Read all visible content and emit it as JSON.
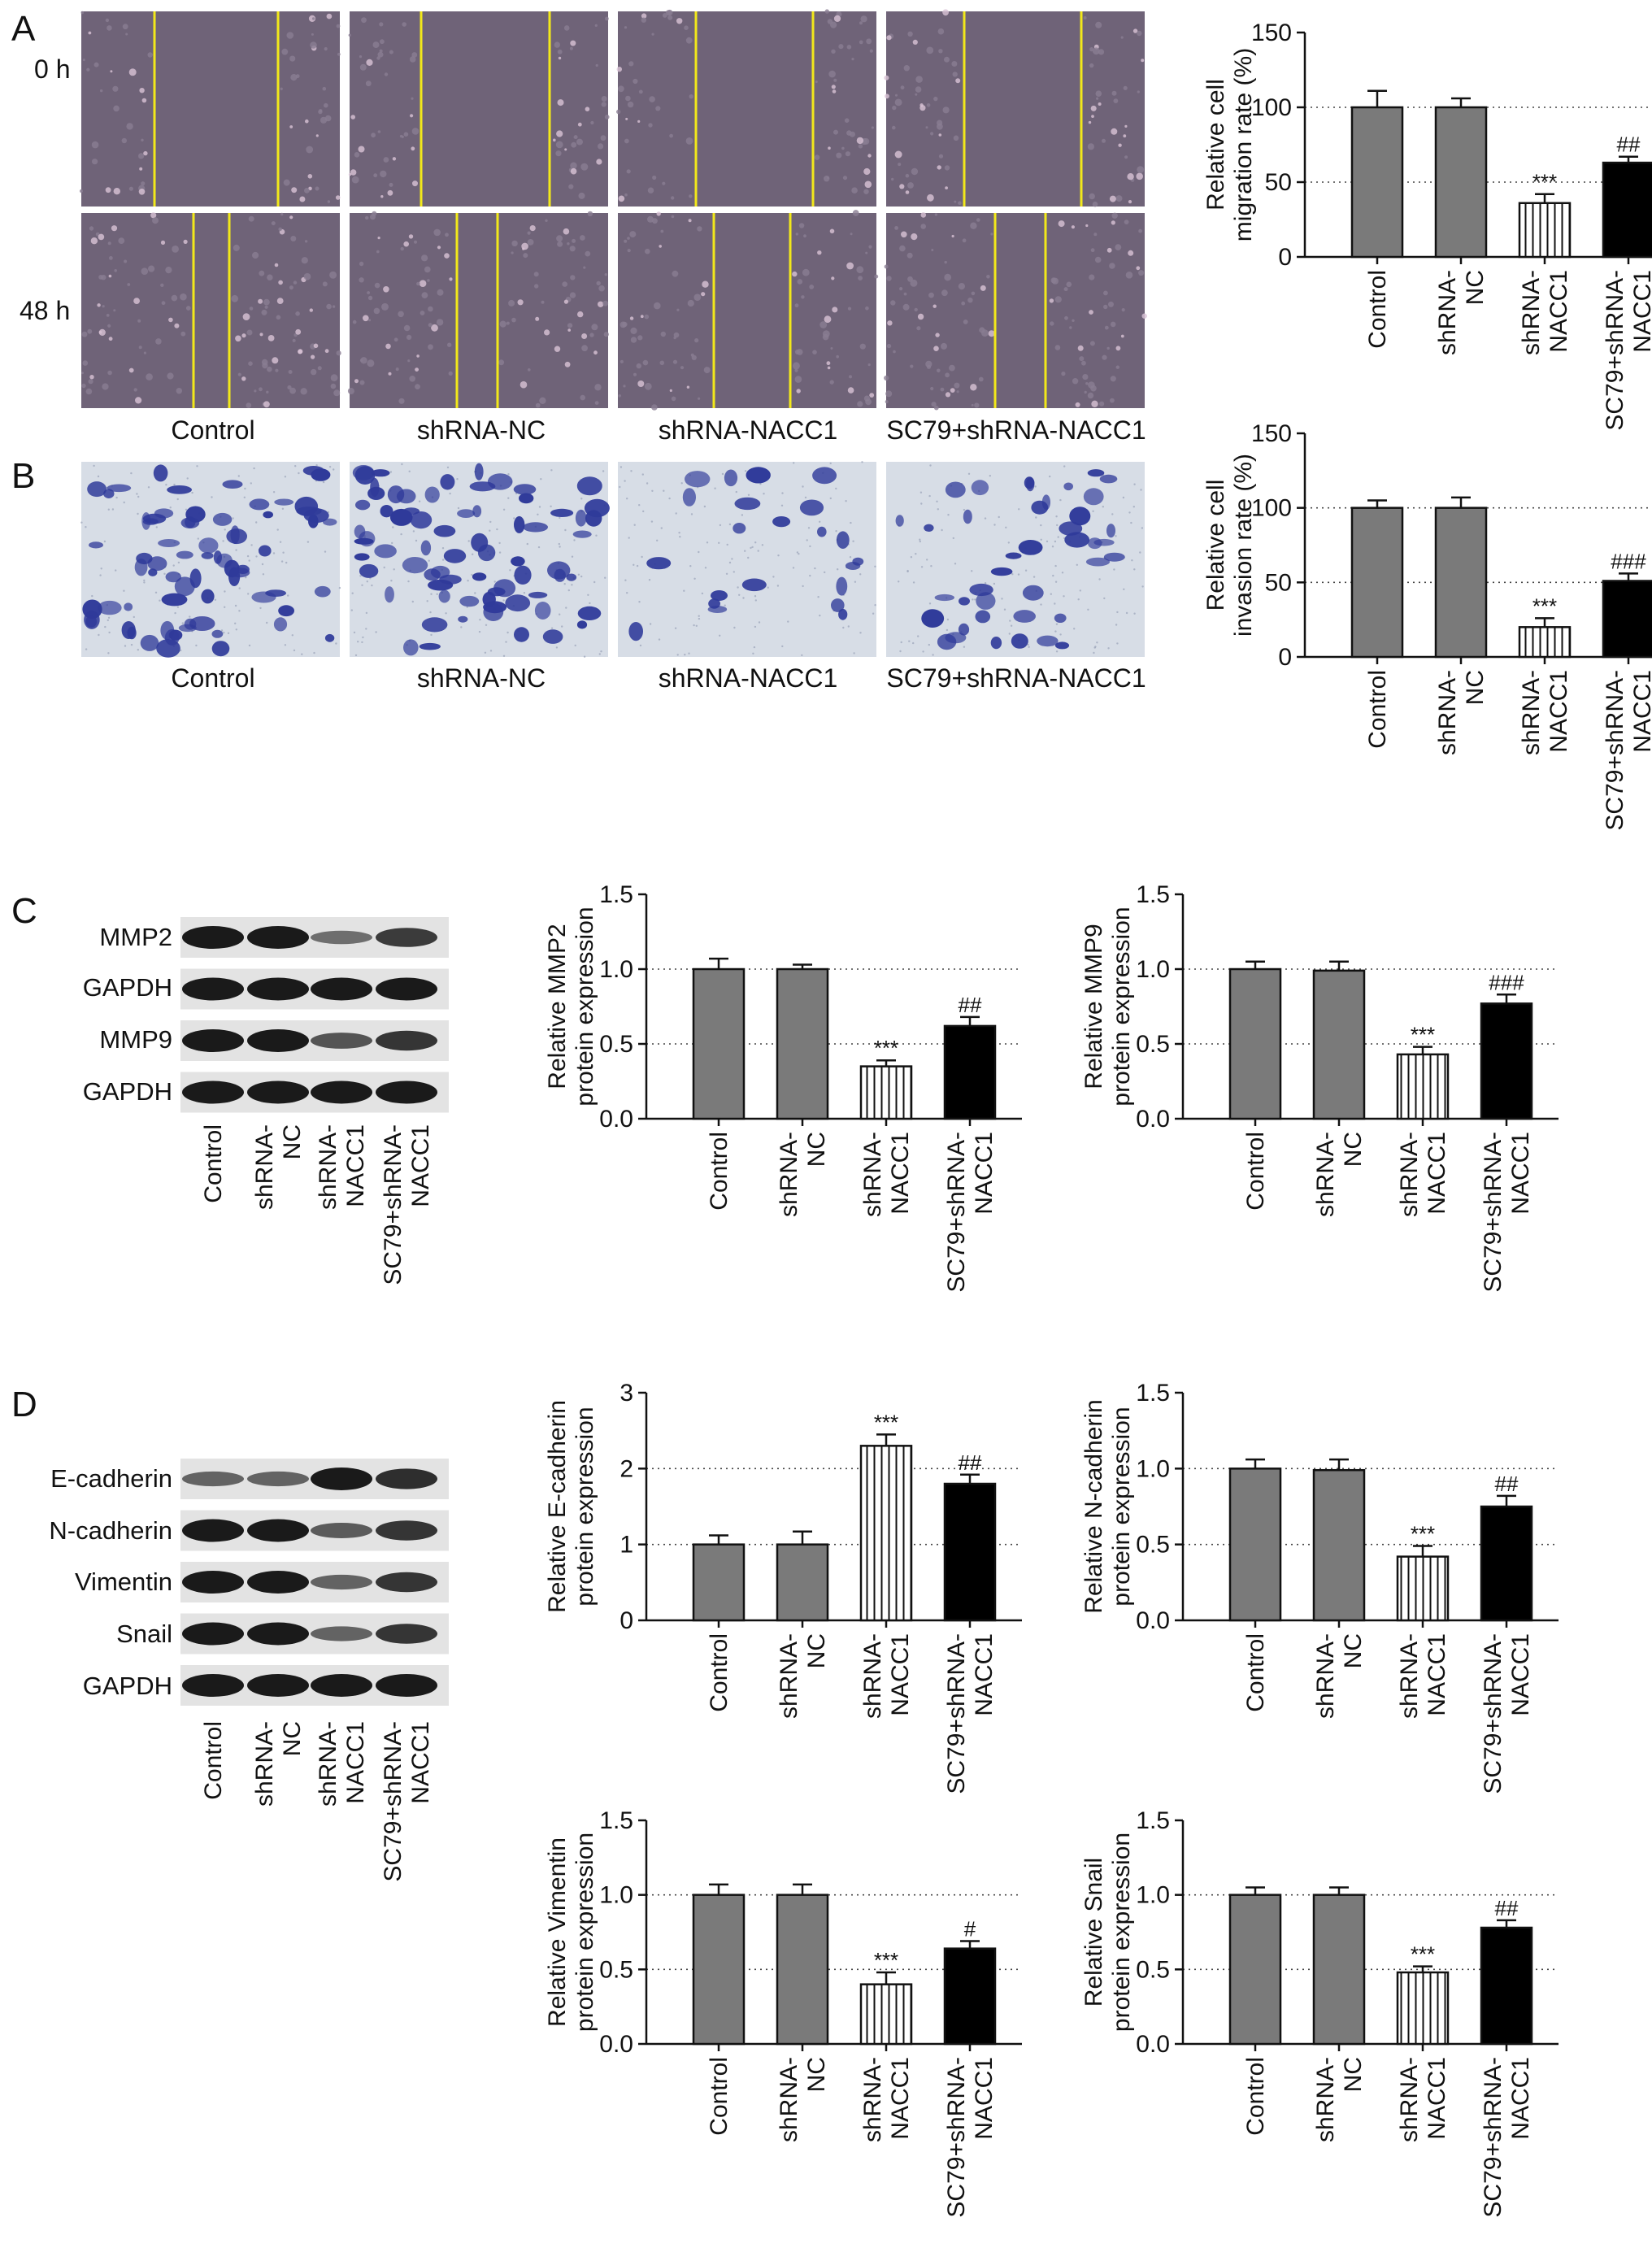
{
  "colors": {
    "control_bar": "#7a7a7a",
    "nc_bar": "#7a7a7a",
    "knockdown_bar": "#ffffff",
    "rescue_bar": "#000000",
    "scratch_photo": "#6f6378",
    "scratch_line": "#f2e81a",
    "transwell_bg": "#d7dde6",
    "transwell_cell": "#2f3a9a",
    "blot_bg": "#e3e3e3",
    "blot_band": "#1a1a1a"
  },
  "panels": {
    "a": {
      "letter": "A",
      "times": [
        "0 h",
        "48 h"
      ],
      "conditions": [
        "Control",
        "shRNA-NC",
        "shRNA-NACC1",
        "SC79+shRNA-NACC1"
      ]
    },
    "b": {
      "letter": "B",
      "conditions": [
        "Control",
        "shRNA-NC",
        "shRNA-NACC1",
        "SC79+shRNA-NACC1"
      ]
    },
    "c": {
      "letter": "C",
      "blot_rows": [
        "MMP2",
        "GAPDH",
        "MMP9",
        "GAPDH"
      ]
    },
    "d": {
      "letter": "D",
      "blot_rows": [
        "E-cadherin",
        "N-cadherin",
        "Vimentin",
        "Snail",
        "GAPDH"
      ]
    },
    "blot_lanes": [
      [
        "Control"
      ],
      [
        "shRNA-",
        "NC"
      ],
      [
        "shRNA-",
        "NACC1"
      ],
      [
        "SC79+shRNA-",
        "NACC1"
      ]
    ],
    "blot_band_strength": {
      "MMP2": [
        1.0,
        1.0,
        0.35,
        0.75
      ],
      "MMP9": [
        1.0,
        1.0,
        0.55,
        0.8
      ],
      "GAPDH": [
        1.0,
        1.0,
        1.0,
        1.0
      ],
      "E-cadherin": [
        0.45,
        0.45,
        1.0,
        0.85
      ],
      "N-cadherin": [
        1.0,
        1.0,
        0.5,
        0.8
      ],
      "Vimentin": [
        1.0,
        1.0,
        0.45,
        0.8
      ],
      "Snail": [
        1.0,
        1.0,
        0.45,
        0.8
      ]
    }
  },
  "chart_data": [
    {
      "type": "bar",
      "id": "migration",
      "categories": [
        [
          "Control"
        ],
        [
          "shRNA-",
          "NC"
        ],
        [
          "shRNA-",
          "NACC1"
        ],
        [
          "SC79+shRNA-",
          "NACC1"
        ]
      ],
      "values": [
        100,
        100,
        36,
        63
      ],
      "errors": [
        11,
        6,
        6,
        4
      ],
      "ylabel_lines": [
        "Relative cell",
        "migration rate (%)"
      ],
      "ylim": [
        0,
        150
      ],
      "yticks": [
        "0",
        "50",
        "100",
        "150"
      ],
      "ref_lines": [
        50,
        100
      ],
      "annotations": [
        "",
        "",
        "***",
        "##"
      ]
    },
    {
      "type": "bar",
      "id": "invasion",
      "categories": [
        [
          "Control"
        ],
        [
          "shRNA-",
          "NC"
        ],
        [
          "shRNA-",
          "NACC1"
        ],
        [
          "SC79+shRNA-",
          "NACC1"
        ]
      ],
      "values": [
        100,
        100,
        20,
        51
      ],
      "errors": [
        5,
        7,
        6,
        5
      ],
      "ylabel_lines": [
        "Relative cell",
        "invasion rate (%)"
      ],
      "ylim": [
        0,
        150
      ],
      "yticks": [
        "0",
        "50",
        "100",
        "150"
      ],
      "ref_lines": [
        50,
        100
      ],
      "annotations": [
        "",
        "",
        "***",
        "###"
      ]
    },
    {
      "type": "bar",
      "id": "mmp2",
      "categories": [
        [
          "Control"
        ],
        [
          "shRNA-",
          "NC"
        ],
        [
          "shRNA-",
          "NACC1"
        ],
        [
          "SC79+shRNA-",
          "NACC1"
        ]
      ],
      "values": [
        1.0,
        1.0,
        0.35,
        0.62
      ],
      "errors": [
        0.07,
        0.03,
        0.04,
        0.06
      ],
      "ylabel_lines": [
        "Relative MMP2",
        "protein expression"
      ],
      "ylim": [
        0,
        1.5
      ],
      "yticks": [
        "0.0",
        "0.5",
        "1.0",
        "1.5"
      ],
      "ref_lines": [
        0.5,
        1.0
      ],
      "annotations": [
        "",
        "",
        "***",
        "##"
      ]
    },
    {
      "type": "bar",
      "id": "mmp9",
      "categories": [
        [
          "Control"
        ],
        [
          "shRNA-",
          "NC"
        ],
        [
          "shRNA-",
          "NACC1"
        ],
        [
          "SC79+shRNA-",
          "NACC1"
        ]
      ],
      "values": [
        1.0,
        0.99,
        0.43,
        0.77
      ],
      "errors": [
        0.05,
        0.06,
        0.05,
        0.06
      ],
      "ylabel_lines": [
        "Relative MMP9",
        "protein expression"
      ],
      "ylim": [
        0,
        1.5
      ],
      "yticks": [
        "0.0",
        "0.5",
        "1.0",
        "1.5"
      ],
      "ref_lines": [
        0.5,
        1.0
      ],
      "annotations": [
        "",
        "",
        "***",
        "###"
      ]
    },
    {
      "type": "bar",
      "id": "ecadherin",
      "categories": [
        [
          "Control"
        ],
        [
          "shRNA-",
          "NC"
        ],
        [
          "shRNA-",
          "NACC1"
        ],
        [
          "SC79+shRNA-",
          "NACC1"
        ]
      ],
      "values": [
        1.0,
        1.0,
        2.3,
        1.8
      ],
      "errors": [
        0.12,
        0.17,
        0.15,
        0.12
      ],
      "ylabel_lines": [
        "Relative E-cadherin",
        "protein expression"
      ],
      "ylim": [
        0,
        3
      ],
      "yticks": [
        "0",
        "1",
        "2",
        "3"
      ],
      "ref_lines": [
        1,
        2
      ],
      "annotations": [
        "",
        "",
        "***",
        "##"
      ]
    },
    {
      "type": "bar",
      "id": "ncadherin",
      "categories": [
        [
          "Control"
        ],
        [
          "shRNA-",
          "NC"
        ],
        [
          "shRNA-",
          "NACC1"
        ],
        [
          "SC79+shRNA-",
          "NACC1"
        ]
      ],
      "values": [
        1.0,
        0.99,
        0.42,
        0.75
      ],
      "errors": [
        0.06,
        0.07,
        0.07,
        0.07
      ],
      "ylabel_lines": [
        "Relative N-cadherin",
        "protein expression"
      ],
      "ylim": [
        0,
        1.5
      ],
      "yticks": [
        "0.0",
        "0.5",
        "1.0",
        "1.5"
      ],
      "ref_lines": [
        0.5,
        1.0
      ],
      "annotations": [
        "",
        "",
        "***",
        "##"
      ]
    },
    {
      "type": "bar",
      "id": "vimentin",
      "categories": [
        [
          "Control"
        ],
        [
          "shRNA-",
          "NC"
        ],
        [
          "shRNA-",
          "NACC1"
        ],
        [
          "SC79+shRNA-",
          "NACC1"
        ]
      ],
      "values": [
        1.0,
        1.0,
        0.4,
        0.64
      ],
      "errors": [
        0.07,
        0.07,
        0.08,
        0.05
      ],
      "ylabel_lines": [
        "Relative Vimentin",
        "protein expression"
      ],
      "ylim": [
        0,
        1.5
      ],
      "yticks": [
        "0.0",
        "0.5",
        "1.0",
        "1.5"
      ],
      "ref_lines": [
        0.5,
        1.0
      ],
      "annotations": [
        "",
        "",
        "***",
        "#"
      ]
    },
    {
      "type": "bar",
      "id": "snail",
      "categories": [
        [
          "Control"
        ],
        [
          "shRNA-",
          "NC"
        ],
        [
          "shRNA-",
          "NACC1"
        ],
        [
          "SC79+shRNA-",
          "NACC1"
        ]
      ],
      "values": [
        1.0,
        1.0,
        0.48,
        0.78
      ],
      "errors": [
        0.05,
        0.05,
        0.04,
        0.05
      ],
      "ylabel_lines": [
        "Relative Snail",
        "protein expression"
      ],
      "ylim": [
        0,
        1.5
      ],
      "yticks": [
        "0.0",
        "0.5",
        "1.0",
        "1.5"
      ],
      "ref_lines": [
        0.5,
        1.0
      ],
      "annotations": [
        "",
        "",
        "***",
        "##"
      ]
    }
  ]
}
